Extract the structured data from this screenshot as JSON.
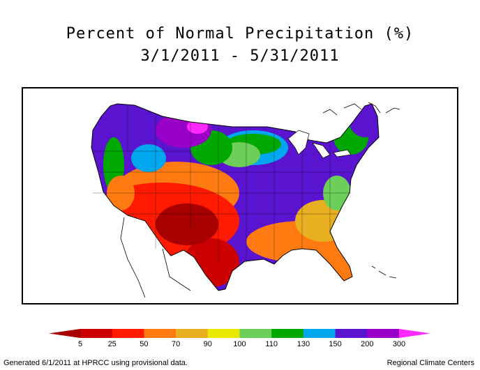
{
  "header": {
    "title": "Percent of Normal Precipitation (%)",
    "date_range": "3/1/2011 - 5/31/2011"
  },
  "legend": {
    "breaks": [
      "5",
      "25",
      "50",
      "70",
      "90",
      "100",
      "110",
      "130",
      "150",
      "200",
      "300"
    ],
    "colors": [
      "#a80000",
      "#cc0000",
      "#ff1a00",
      "#ff7a10",
      "#e8b020",
      "#e8e800",
      "#6ccf5a",
      "#00a800",
      "#00a6ee",
      "#5a14d0",
      "#9a00c8",
      "#ff28ff"
    ]
  },
  "footer": {
    "left": "Generated 6/1/2011 at HPRCC using provisional data.",
    "right": "Regional Climate Centers"
  },
  "map": {
    "region": "Contiguous United States",
    "palette": {
      "very_dry": "#a80000",
      "dry": "#ff1a00",
      "below_normal": "#ff7a10",
      "slightly_below": "#e8b020",
      "near_normal": "#e8e800",
      "slightly_above": "#6ccf5a",
      "above": "#00a800",
      "wet": "#00a6ee",
      "very_wet": "#5a14d0",
      "extreme": "#9a00c8",
      "record": "#ff28ff"
    }
  }
}
